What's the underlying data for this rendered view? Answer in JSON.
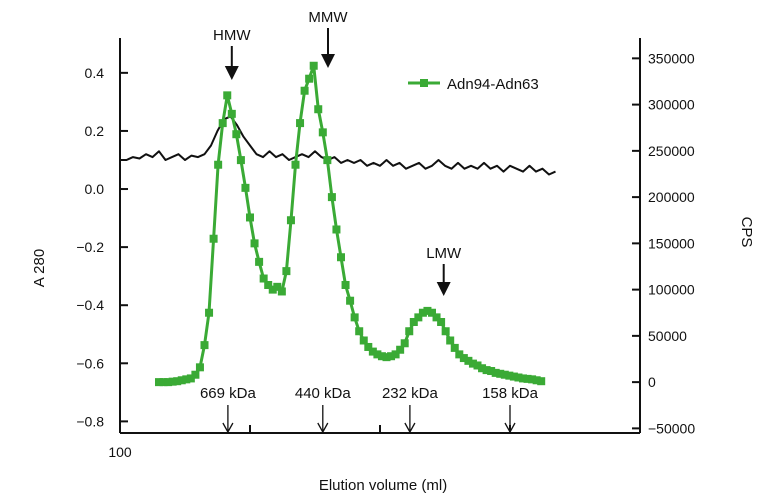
{
  "chart_data": {
    "type": "line",
    "xlabel": "Elution volume (ml)",
    "ylabel_left": "A 280",
    "ylabel_right": "CPS",
    "x_tick_labels": [
      "100"
    ],
    "left_axis": {
      "ylim": [
        -0.84,
        0.52
      ],
      "ticks": [
        -0.8,
        -0.6,
        -0.4,
        -0.2,
        0.0,
        0.2,
        0.4
      ],
      "tick_labels": [
        "−0.8",
        "−0.6",
        "−0.4",
        "−0.2",
        "0.0",
        "0.2",
        "0.4"
      ]
    },
    "right_axis": {
      "ylim": [
        -55000,
        372000
      ],
      "ticks": [
        -50000,
        0,
        50000,
        100000,
        150000,
        200000,
        250000,
        300000,
        350000
      ],
      "tick_labels": [
        "−50000",
        "0",
        "50000",
        "100000",
        "150000",
        "200000",
        "250000",
        "300000",
        "350000"
      ]
    },
    "xlim": [
      100,
      140
    ],
    "series": [
      {
        "name": "Adn94-Adn63",
        "axis": "right",
        "color": "#3aaa35",
        "marker": "square",
        "x": [
          103.0,
          103.35,
          103.7,
          104.05,
          104.4,
          104.75,
          105.1,
          105.45,
          105.8,
          106.15,
          106.5,
          106.85,
          107.2,
          107.55,
          107.9,
          108.25,
          108.6,
          108.95,
          109.3,
          109.65,
          110.0,
          110.35,
          110.7,
          111.05,
          111.4,
          111.75,
          112.1,
          112.45,
          112.8,
          113.15,
          113.5,
          113.85,
          114.2,
          114.55,
          114.9,
          115.25,
          115.6,
          115.95,
          116.3,
          116.65,
          117.0,
          117.35,
          117.7,
          118.05,
          118.4,
          118.75,
          119.1,
          119.45,
          119.8,
          120.15,
          120.5,
          120.85,
          121.2,
          121.55,
          121.9,
          122.25,
          122.6,
          122.95,
          123.3,
          123.65,
          124.0,
          124.35,
          124.7,
          125.05,
          125.4,
          125.75,
          126.1,
          126.45,
          126.8,
          127.15,
          127.5,
          127.85,
          128.2,
          128.55,
          128.9,
          129.25,
          129.6,
          129.95,
          130.3,
          130.65,
          131.0,
          131.35,
          131.7,
          132.05,
          132.4
        ],
        "y": [
          0,
          0,
          0,
          500,
          1000,
          2000,
          3000,
          4000,
          8000,
          16000,
          40000,
          75000,
          155000,
          235000,
          280000,
          310000,
          290000,
          268000,
          240000,
          210000,
          178000,
          150000,
          130000,
          112000,
          105000,
          100000,
          103000,
          98000,
          120000,
          175000,
          235000,
          280000,
          315000,
          328000,
          342000,
          295000,
          270000,
          240000,
          200000,
          165000,
          135000,
          105000,
          88000,
          70000,
          55000,
          45000,
          38000,
          33000,
          30000,
          28000,
          27000,
          28000,
          30000,
          35000,
          42000,
          55000,
          65000,
          70000,
          75000,
          77000,
          75000,
          70000,
          65000,
          55000,
          45000,
          37000,
          30000,
          26000,
          23000,
          20000,
          18000,
          15000,
          13000,
          12000,
          10000,
          9000,
          8000,
          7000,
          6000,
          5000,
          4000,
          3500,
          3000,
          2000,
          1000
        ]
      },
      {
        "name": "",
        "axis": "left",
        "color": "#111111",
        "x": [
          100.0,
          100.5,
          101.0,
          101.5,
          102.0,
          102.5,
          103.0,
          103.5,
          104.0,
          104.5,
          105.0,
          105.5,
          106.0,
          106.5,
          107.0,
          107.5,
          108.0,
          108.5,
          109.0,
          109.5,
          110.0,
          110.5,
          111.0,
          111.5,
          112.0,
          112.5,
          113.0,
          113.5,
          114.0,
          114.5,
          115.0,
          115.5,
          116.0,
          116.5,
          117.0,
          117.5,
          118.0,
          118.5,
          119.0,
          119.5,
          120.0,
          120.5,
          121.0,
          121.5,
          122.0,
          122.5,
          123.0,
          123.5,
          124.0,
          124.5,
          125.0,
          125.5,
          126.0,
          126.5,
          127.0,
          127.5,
          128.0,
          128.5,
          129.0,
          129.5,
          130.0,
          130.5,
          131.0,
          131.5,
          132.0,
          132.5,
          133.0,
          133.5
        ],
        "y": [
          0.1,
          0.1,
          0.11,
          0.105,
          0.12,
          0.11,
          0.13,
          0.1,
          0.11,
          0.12,
          0.1,
          0.115,
          0.11,
          0.12,
          0.15,
          0.2,
          0.24,
          0.25,
          0.22,
          0.18,
          0.15,
          0.12,
          0.11,
          0.13,
          0.11,
          0.12,
          0.1,
          0.11,
          0.12,
          0.11,
          0.13,
          0.11,
          0.1,
          0.11,
          0.09,
          0.1,
          0.09,
          0.1,
          0.08,
          0.09,
          0.08,
          0.1,
          0.08,
          0.09,
          0.07,
          0.08,
          0.09,
          0.07,
          0.08,
          0.1,
          0.08,
          0.07,
          0.09,
          0.07,
          0.08,
          0.07,
          0.09,
          0.07,
          0.08,
          0.06,
          0.08,
          0.07,
          0.06,
          0.08,
          0.06,
          0.07,
          0.05,
          0.06
        ]
      }
    ],
    "legend": {
      "label": "Adn94-Adn63",
      "placement": "top-right"
    },
    "peak_annotations": [
      {
        "label": "HMW",
        "x": 108.6
      },
      {
        "label": "MMW",
        "x": 116.0
      },
      {
        "label": "LMW",
        "x": 124.9
      }
    ],
    "standard_markers": [
      {
        "label": "669 kDa",
        "x": 108.3
      },
      {
        "label": "440 kDa",
        "x": 115.6
      },
      {
        "label": "232 kDa",
        "x": 122.3
      },
      {
        "label": "158 kDa",
        "x": 130.0
      }
    ],
    "grid": false
  }
}
